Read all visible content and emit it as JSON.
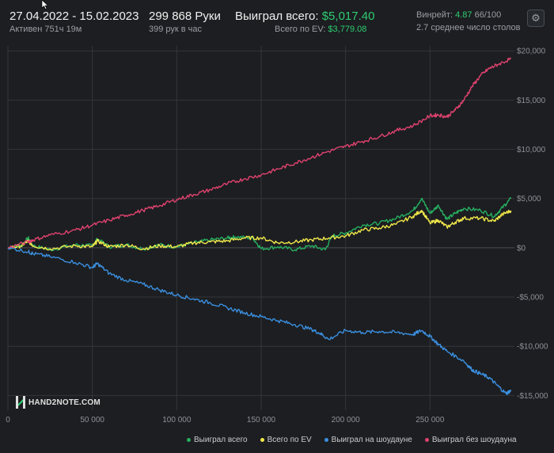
{
  "header": {
    "date_range": "27.04.2022 - 15.02.2023",
    "active": "Активен 751ч 19м",
    "hands": "299 868 Руки",
    "hands_per_hour": "399 рук в час",
    "won_total_label": "Выиграл всего:",
    "won_total_value": "$5,017.40",
    "ev_label": "Всего по EV:",
    "ev_value": "$3,779.08",
    "winrate_label": "Винрейт:",
    "winrate_value": "4.87",
    "winrate_unit": "66/100",
    "tables_avg": "2.7 среднее число столов"
  },
  "icons": {
    "settings": "gear-icon",
    "cursor": "cursor-icon",
    "logo": "hand2note-logo"
  },
  "logo_text": "HAND2NOTE.COM",
  "colors": {
    "background": "#1c1e21",
    "grid": "#33363a",
    "won_total": "#27ae60",
    "ev_total": "#f1e84a",
    "showdown": "#3b8fe0",
    "non_showdown": "#e0426f",
    "accent_green": "#2ecc71"
  },
  "chart_data": {
    "type": "line",
    "xlim": [
      0,
      300000
    ],
    "ylim": [
      -16500,
      20500
    ],
    "x_ticks": [
      0,
      50000,
      100000,
      150000,
      200000,
      250000
    ],
    "x_tick_labels": [
      "0",
      "50 000",
      "100 000",
      "150 000",
      "200 000",
      "250 000"
    ],
    "y_ticks": [
      20000,
      15000,
      10000,
      5000,
      0,
      -5000,
      -10000,
      -15000
    ],
    "y_tick_labels": [
      "$20,000",
      "$15,000",
      "$10,000",
      "$5,000",
      "$0",
      "-$5,000",
      "-$10,000",
      "-$15,000"
    ],
    "grid": true,
    "legend_position": "bottom-right",
    "series": [
      {
        "name": "Выиграл всего",
        "color": "#27ae60",
        "x": [
          0,
          8000,
          12000,
          15000,
          25000,
          40000,
          50000,
          53000,
          60000,
          70000,
          80000,
          90000,
          100000,
          110000,
          120000,
          130000,
          135000,
          145000,
          150000,
          160000,
          170000,
          180000,
          188000,
          192000,
          200000,
          210000,
          220000,
          230000,
          240000,
          245000,
          250000,
          255000,
          260000,
          265000,
          270000,
          280000,
          288000,
          293000,
          298000
        ],
        "y": [
          0,
          200,
          1000,
          200,
          -200,
          300,
          200,
          900,
          100,
          300,
          -100,
          300,
          100,
          500,
          800,
          1000,
          1100,
          1000,
          -100,
          100,
          -200,
          200,
          -200,
          1200,
          1500,
          2300,
          2500,
          3000,
          3800,
          5000,
          3500,
          4300,
          2900,
          3500,
          4000,
          3800,
          3200,
          4100,
          5000
        ]
      },
      {
        "name": "Всего по EV",
        "color": "#f1e84a",
        "x": [
          0,
          8000,
          12000,
          15000,
          25000,
          40000,
          50000,
          53000,
          60000,
          70000,
          80000,
          90000,
          100000,
          110000,
          120000,
          130000,
          140000,
          150000,
          160000,
          170000,
          180000,
          190000,
          200000,
          210000,
          220000,
          230000,
          240000,
          245000,
          250000,
          255000,
          260000,
          265000,
          270000,
          280000,
          288000,
          293000,
          298000
        ],
        "y": [
          0,
          200,
          700,
          200,
          -100,
          200,
          100,
          700,
          100,
          300,
          -100,
          200,
          100,
          500,
          600,
          700,
          1000,
          1000,
          500,
          600,
          800,
          1000,
          1200,
          1800,
          2000,
          2400,
          3200,
          3800,
          2500,
          2800,
          2100,
          2600,
          3000,
          3000,
          2700,
          3400,
          3779
        ]
      },
      {
        "name": "Выиграл на шоудауне",
        "color": "#3b8fe0",
        "x": [
          0,
          12000,
          15000,
          25000,
          40000,
          50000,
          53000,
          60000,
          70000,
          80000,
          90000,
          100000,
          110000,
          120000,
          130000,
          140000,
          150000,
          160000,
          170000,
          180000,
          185000,
          190000,
          200000,
          210000,
          220000,
          230000,
          240000,
          245000,
          250000,
          255000,
          260000,
          270000,
          275000,
          280000,
          285000,
          290000,
          295000,
          298000
        ],
        "y": [
          0,
          -400,
          -600,
          -900,
          -1500,
          -2000,
          -1600,
          -2600,
          -3300,
          -3700,
          -4300,
          -4800,
          -5200,
          -5600,
          -6100,
          -6600,
          -7000,
          -7400,
          -7800,
          -8300,
          -8700,
          -9300,
          -8400,
          -8600,
          -8500,
          -8600,
          -8800,
          -8400,
          -9000,
          -9800,
          -10500,
          -11500,
          -12400,
          -12800,
          -13200,
          -14000,
          -14800,
          -14500
        ]
      },
      {
        "name": "Выиграл без шоудауна",
        "color": "#e0426f",
        "x": [
          0,
          12000,
          15000,
          25000,
          40000,
          50000,
          60000,
          70000,
          80000,
          90000,
          100000,
          110000,
          120000,
          130000,
          140000,
          150000,
          160000,
          170000,
          180000,
          190000,
          200000,
          210000,
          220000,
          230000,
          240000,
          250000,
          255000,
          260000,
          265000,
          270000,
          275000,
          280000,
          285000,
          290000,
          298000
        ],
        "y": [
          0,
          600,
          800,
          1300,
          1800,
          2300,
          2800,
          3300,
          3800,
          4300,
          4900,
          5400,
          5900,
          6500,
          7000,
          7400,
          8000,
          8600,
          9200,
          9800,
          10300,
          10800,
          11300,
          11900,
          12400,
          13400,
          13500,
          13300,
          14000,
          15000,
          16400,
          17500,
          18200,
          18600,
          19200
        ]
      }
    ]
  }
}
